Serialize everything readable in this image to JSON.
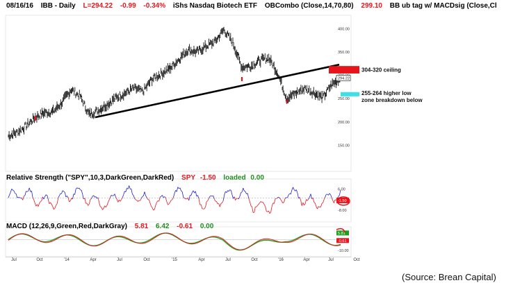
{
  "header": {
    "date": "08/16/16",
    "symbol": "IBB - Daily",
    "last": "L=294.22",
    "change": "-0.99",
    "change_pct": "-0.34%",
    "name": "iShs Nasdaq Biotech ETF",
    "indicator": "OBCombo (Close,14,70,80)",
    "ob_value": "299.10",
    "indicator2": "BB ub tag w/ MACDsig (Close,Cl"
  },
  "rs": {
    "title": "Relative Strength (\"SPY\",10,3,DarkGreen,DarkRed)",
    "spy_label": "SPY",
    "spy_value": "-1.50",
    "loaded_label": "loaded",
    "loaded_value": "0.00"
  },
  "macd": {
    "title": "MACD (12,26,9,Green,Red,DarkGray)",
    "v1": "5.81",
    "v2": "6.42",
    "v3": "-0.61",
    "v4": "0.00"
  },
  "source": "(Source: Brean Capital)",
  "colors": {
    "ceiling_box": "#e8141b",
    "support_box": "#3de0e8",
    "rs_above": "#2020d0",
    "rs_below": "#e8141b",
    "macd_line": "#1d9f1d",
    "macd_signal": "#e8141b",
    "price_bars": "#111111"
  },
  "chart_data": {
    "type": "line",
    "x_ticks": [
      "Jul",
      "Oct",
      "'14",
      "Apr",
      "Jul",
      "Oct",
      "'15",
      "Apr",
      "Jul",
      "Oct",
      "'16",
      "Apr",
      "Jul",
      "Oct"
    ],
    "price": {
      "y_ticks": [
        "400.00",
        "350.00",
        "300.00",
        "250.00",
        "200.00",
        "150.00"
      ],
      "ylim": [
        100,
        420
      ],
      "last_label": "294.22",
      "series": [
        {
          "name": "IBB",
          "points": [
            [
              "Jul",
              170
            ],
            [
              "Aug",
              178
            ],
            [
              "Sep",
              192
            ],
            [
              "Oct",
              210
            ],
            [
              "Nov",
              220
            ],
            [
              "Dec",
              222
            ],
            [
              "'14",
              242
            ],
            [
              "Feb",
              270
            ],
            [
              "Mar",
              255
            ],
            [
              "Apr",
              216
            ],
            [
              "May",
              225
            ],
            [
              "Jun",
              238
            ],
            [
              "Jul",
              252
            ],
            [
              "Aug",
              262
            ],
            [
              "Sep",
              272
            ],
            [
              "Oct",
              265
            ],
            [
              "Nov",
              292
            ],
            [
              "Dec",
              303
            ],
            [
              "'15",
              315
            ],
            [
              "Feb",
              335
            ],
            [
              "Mar",
              355
            ],
            [
              "Apr",
              350
            ],
            [
              "May",
              362
            ],
            [
              "Jun",
              372
            ],
            [
              "Jul",
              398
            ],
            [
              "Aug",
              370
            ],
            [
              "Sep",
              318
            ],
            [
              "Oct",
              320
            ],
            [
              "Nov",
              332
            ],
            [
              "Dec",
              337
            ],
            [
              "'16",
              305
            ],
            [
              "Feb",
              250
            ],
            [
              "Mar",
              262
            ],
            [
              "Apr",
              272
            ],
            [
              "May",
              263
            ],
            [
              "Jun",
              252
            ],
            [
              "Jul",
              280
            ],
            [
              "Aug",
              294
            ]
          ]
        }
      ],
      "annotations": [
        {
          "type": "box",
          "label": "304-320 ceiling",
          "color": "#e8141b",
          "y_range": [
            304,
            320
          ]
        },
        {
          "type": "box",
          "label": "255-264 higher low zone breakdown below",
          "color": "#3de0e8",
          "y_range": [
            255,
            264
          ]
        },
        {
          "type": "trendline",
          "from": [
            "Apr '14",
            210
          ],
          "to": [
            "Jul '16",
            323
          ]
        }
      ]
    },
    "relative_strength": {
      "y_ticks": [
        "6.00",
        "-8.00"
      ],
      "last_label": "-1.50",
      "ylim": [
        -14,
        10
      ]
    },
    "macd": {
      "y_ticks": [
        "-10.00"
      ],
      "last_labels": [
        "5.81",
        "-0.61"
      ],
      "ylim": [
        -14,
        8
      ]
    }
  }
}
